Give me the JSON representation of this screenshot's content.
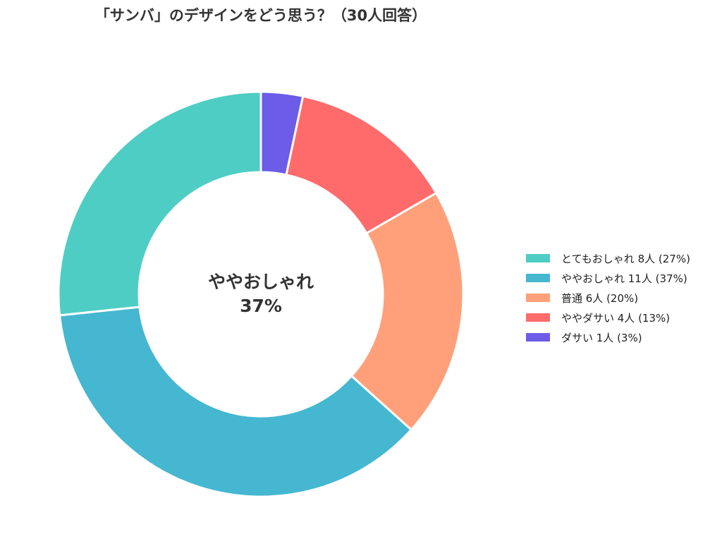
{
  "title": "「サンバ」のデザインをどう思う？（30人回答）",
  "center": {
    "label": "ややおしゃれ",
    "value": "37%"
  },
  "legend": [
    {
      "label": "とてもおしゃれ  8人 (27%)",
      "color": "#4ECDC4"
    },
    {
      "label": "ややおしゃれ  11人 (37%)",
      "color": "#45B7D1"
    },
    {
      "label": "普通  6人 (20%)",
      "color": "#FFA07A"
    },
    {
      "label": "ややダサい  4人 (13%)",
      "color": "#FF6B6B"
    },
    {
      "label": "ダサい  1人 (3%)",
      "color": "#6C5CE7"
    }
  ],
  "chart_data": {
    "type": "pie",
    "subtype": "donut",
    "title": "「サンバ」のデザインをどう思う？（30人回答）",
    "categories": [
      "とてもおしゃれ",
      "ややおしゃれ",
      "普通",
      "ややダサい",
      "ダサい"
    ],
    "values": [
      8,
      11,
      6,
      4,
      1
    ],
    "percentages": [
      27,
      37,
      20,
      13,
      3
    ],
    "colors": [
      "#4ECDC4",
      "#45B7D1",
      "#FFA07A",
      "#FF6B6B",
      "#6C5CE7"
    ],
    "total": 30,
    "center_text": "ややおしゃれ 37%",
    "start_angle": 90,
    "direction": "counterclockwise",
    "legend_position": "right"
  }
}
